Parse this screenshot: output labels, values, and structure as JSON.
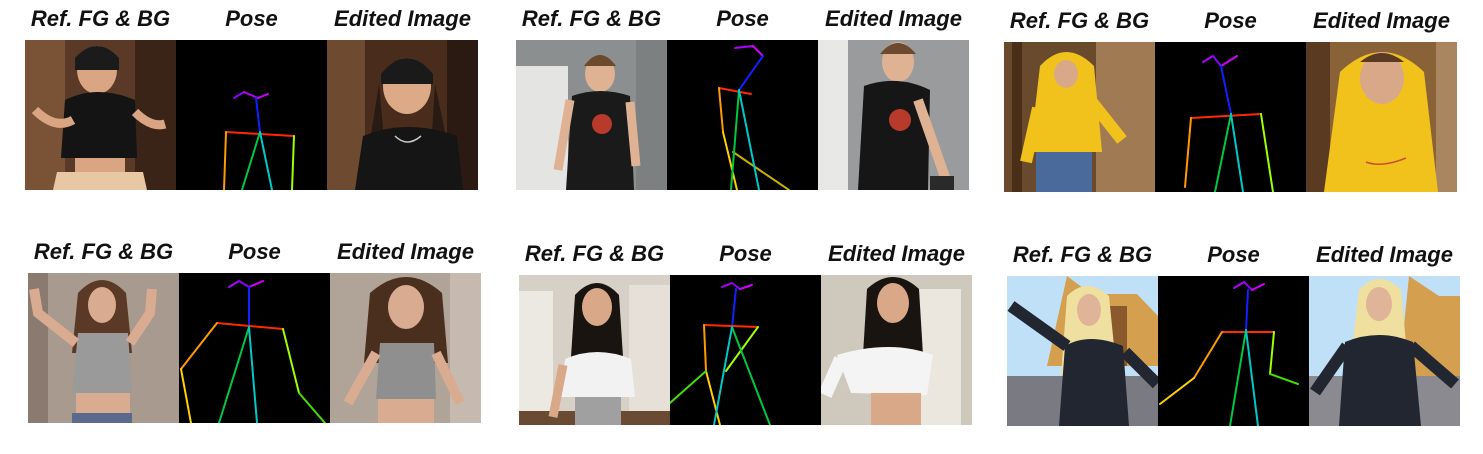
{
  "labels": {
    "ref": "Ref. FG & BG",
    "pose": "Pose",
    "edited": "Edited Image"
  },
  "panels": [
    {
      "id": "p1",
      "ref": "Ref. FG & BG",
      "pose": "Pose",
      "edited": "Edited Image"
    },
    {
      "id": "p2",
      "ref": "Ref. FG & BG",
      "pose": "Pose",
      "edited": "Edited Image"
    },
    {
      "id": "p3",
      "ref": "Ref. FG & BG",
      "pose": "Pose",
      "edited": "Edited Image"
    },
    {
      "id": "p4",
      "ref": "Ref. FG & BG",
      "pose": "Pose",
      "edited": "Edited Image"
    },
    {
      "id": "p5",
      "ref": "Ref. FG & BG",
      "pose": "Pose",
      "edited": "Edited Image"
    },
    {
      "id": "p6",
      "ref": "Ref. FG & BG",
      "pose": "Pose",
      "edited": "Edited Image"
    }
  ]
}
